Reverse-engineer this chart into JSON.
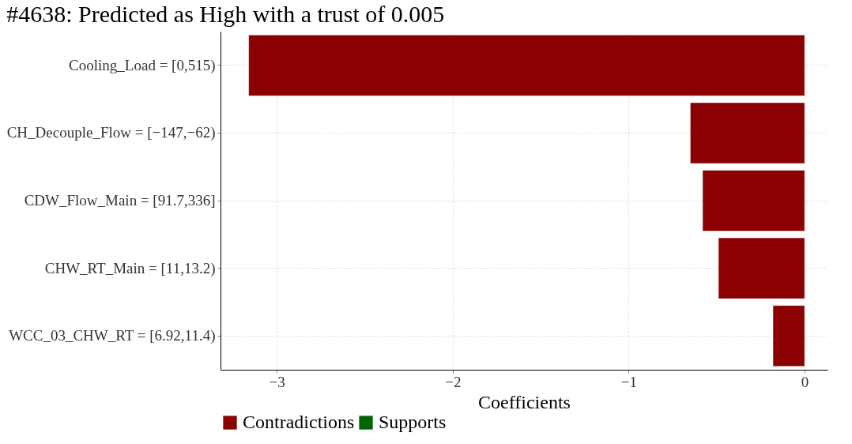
{
  "chart_data": {
    "type": "bar",
    "orientation": "horizontal",
    "title": "#4638: Predicted as High with a trust of 0.005",
    "xlabel": "Coefficients",
    "categories": [
      "Cooling_Load = [0,515)",
      "CH_Decouple_Flow = [−147,−62)",
      "CDW_Flow_Main = [91.7,336]",
      "CHW_RT_Main = [11,13.2)",
      "WCC_03_CHW_RT = [6.92,11.4)"
    ],
    "series": [
      {
        "name": "Contradictions",
        "color": "#8b0000",
        "values": [
          -3.16,
          -0.65,
          -0.58,
          -0.49,
          -0.18
        ]
      },
      {
        "name": "Supports",
        "color": "#006400",
        "values": [
          null,
          null,
          null,
          null,
          null
        ]
      }
    ],
    "xlim": [
      -3.32,
      0.13
    ],
    "xticks": [
      {
        "value": -3,
        "label": "−3"
      },
      {
        "value": -2,
        "label": "−2"
      },
      {
        "value": -1,
        "label": "−1"
      },
      0
    ],
    "grid": true,
    "legend": "bottom"
  }
}
